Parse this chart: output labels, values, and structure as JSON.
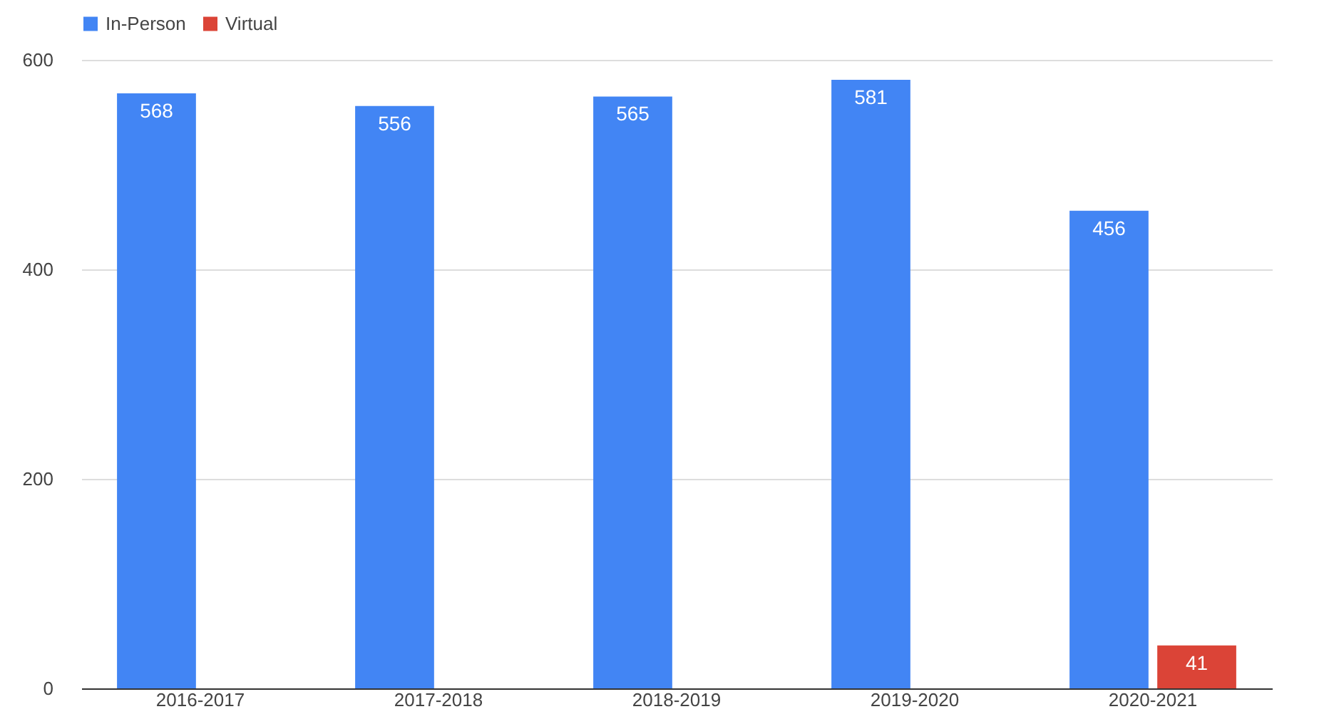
{
  "chart_data": {
    "type": "bar",
    "categories": [
      "2016-2017",
      "2017-2018",
      "2018-2019",
      "2019-2020",
      "2020-2021"
    ],
    "series": [
      {
        "name": "In-Person",
        "color": "#4285f4",
        "values": [
          568,
          556,
          565,
          581,
          456
        ]
      },
      {
        "name": "Virtual",
        "color": "#db4437",
        "values": [
          null,
          null,
          null,
          null,
          41
        ]
      }
    ],
    "ylim": [
      0,
      600
    ],
    "yticks": [
      0,
      200,
      400,
      600
    ],
    "grid": "y",
    "legend": "top",
    "data_labels": true
  }
}
